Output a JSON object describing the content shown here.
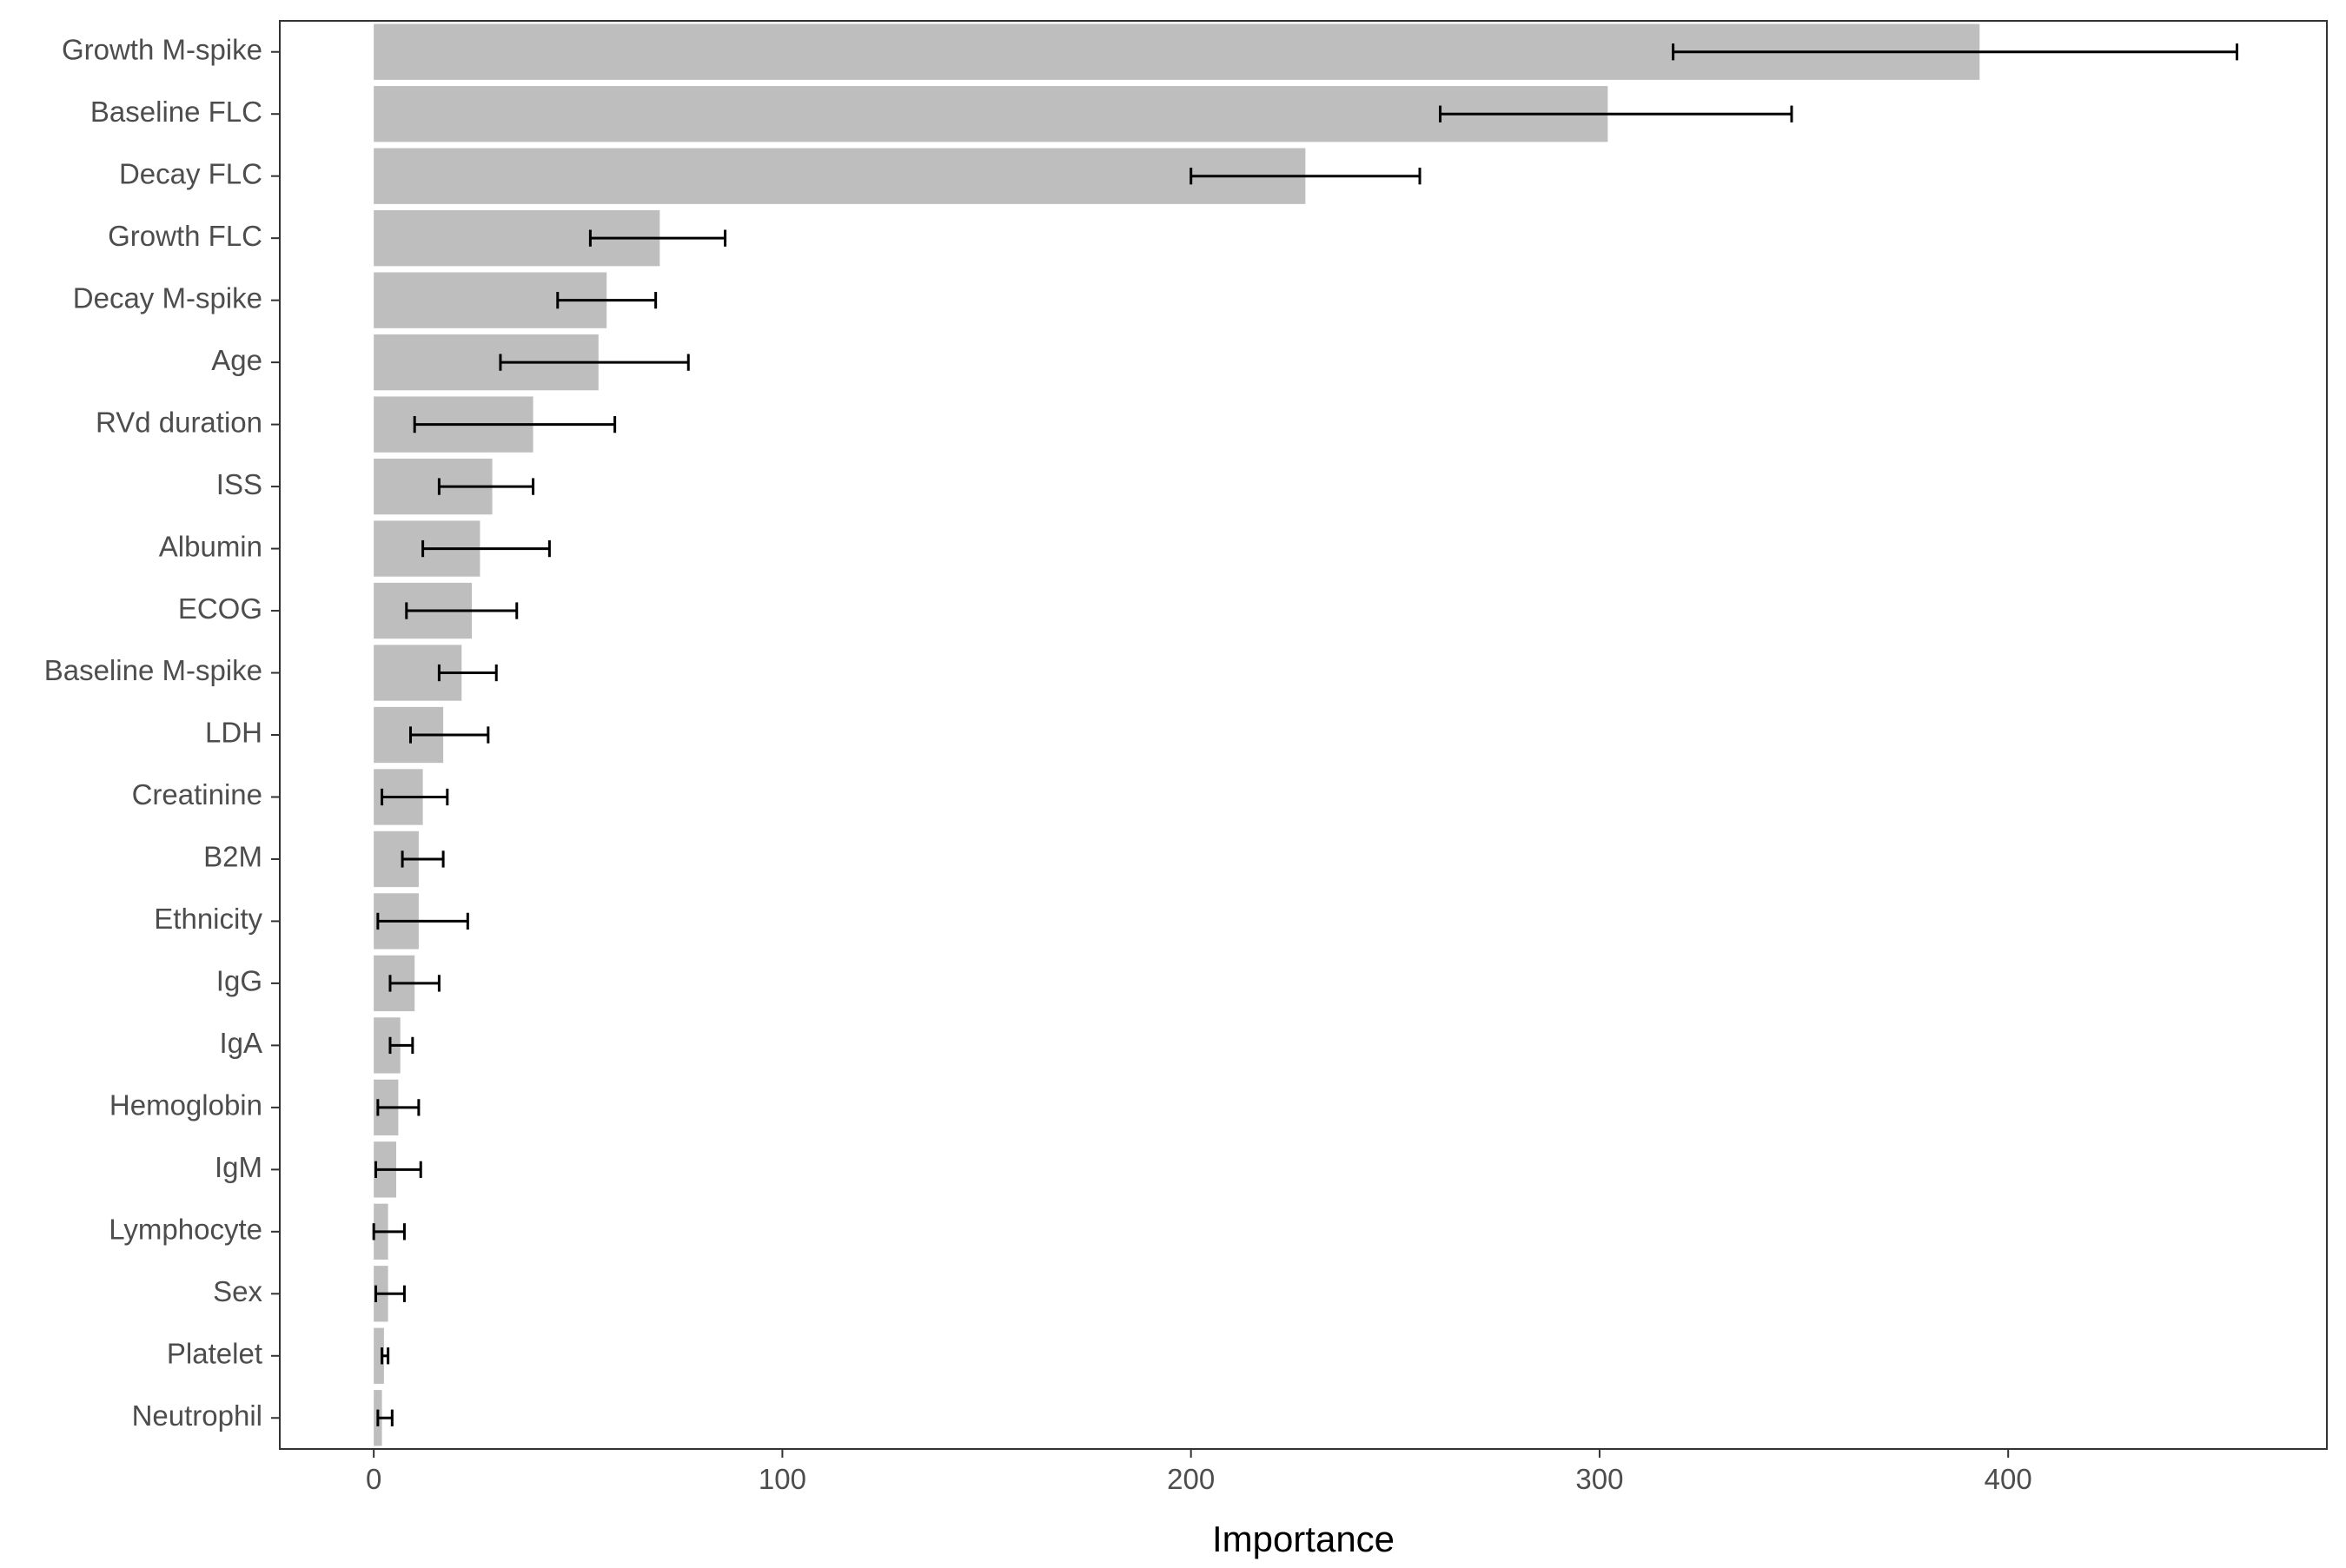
{
  "chart_data": {
    "type": "bar",
    "orientation": "horizontal",
    "title": "",
    "xlabel": "Importance",
    "ylabel": "",
    "xlim": [
      -23,
      478
    ],
    "xticks": [
      0,
      100,
      200,
      300,
      400
    ],
    "grid": false,
    "legend": "none",
    "colors": {
      "bar": "#bebebe",
      "error_bar": "#000000",
      "axis_text": "#4d4d4d",
      "panel_border": "#333333"
    },
    "categories": [
      "Growth M-spike",
      "Baseline FLC",
      "Decay FLC",
      "Growth FLC",
      "Decay M-spike",
      "Age",
      "RVd duration",
      "ISS",
      "Albumin",
      "ECOG",
      "Baseline M-spike",
      "LDH",
      "Creatinine",
      "B2M",
      "Ethnicity",
      "IgG",
      "IgA",
      "Hemoglobin",
      "IgM",
      "Lymphocyte",
      "Sex",
      "Platelet",
      "Neutrophil"
    ],
    "values": [
      393,
      302,
      228,
      70,
      57,
      55,
      39,
      29,
      26,
      24,
      21.5,
      17,
      12,
      11,
      11,
      10,
      6.5,
      6,
      5.5,
      3.5,
      3.5,
      2.5,
      2
    ],
    "error_low": [
      318,
      261,
      200,
      53,
      45,
      31,
      10,
      16,
      12,
      8,
      16,
      9,
      2,
      7,
      1,
      4,
      4,
      1,
      0.5,
      0,
      0.5,
      2,
      1
    ],
    "error_high": [
      456,
      347,
      256,
      86,
      69,
      77,
      59,
      39,
      43,
      35,
      30,
      28,
      18,
      17,
      23,
      16,
      9.5,
      11,
      11.5,
      7.5,
      7.5,
      3.5,
      4.5
    ]
  }
}
